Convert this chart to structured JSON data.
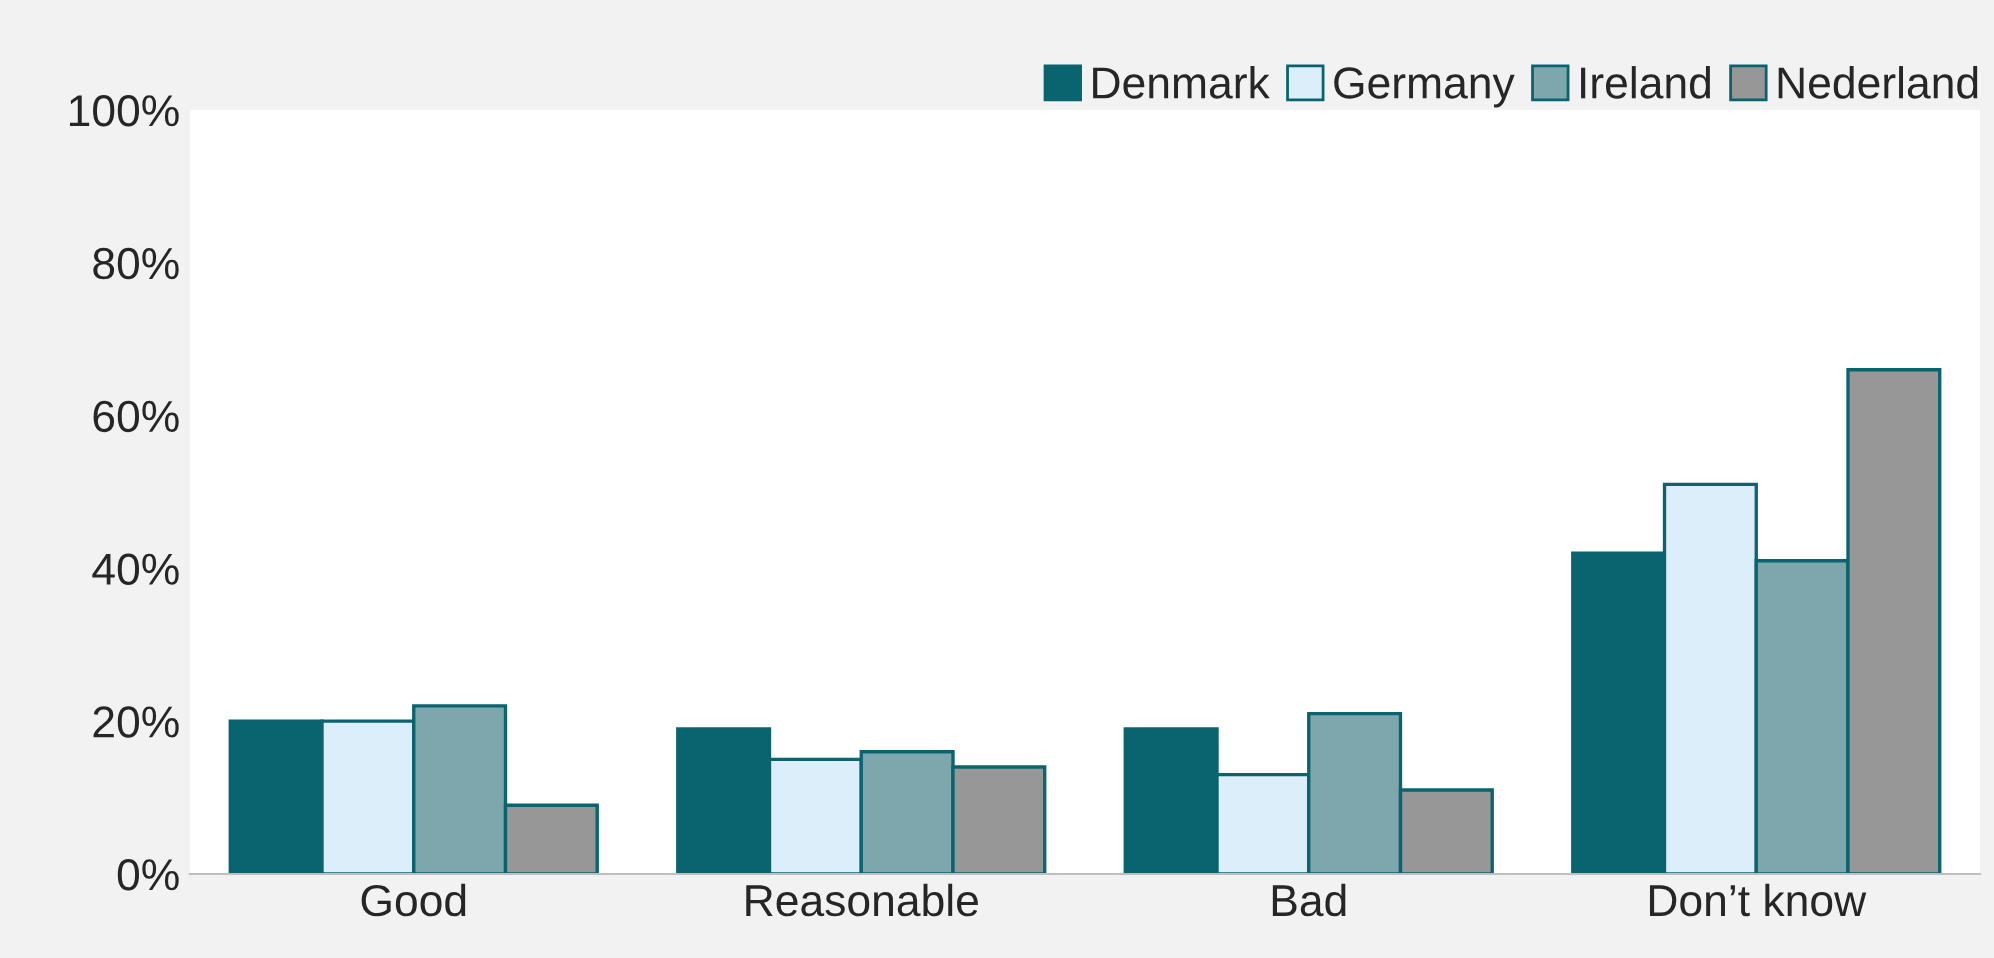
{
  "chart_data": {
    "type": "bar",
    "categories": [
      "Good",
      "Reasonable",
      "Bad",
      "Don’t know"
    ],
    "series": [
      {
        "name": "Denmark",
        "color": "#0a6470",
        "values": [
          20,
          19,
          19,
          42
        ]
      },
      {
        "name": "Germany",
        "color": "#dbeef9",
        "values": [
          20,
          15,
          13,
          51
        ]
      },
      {
        "name": "Ireland",
        "color": "#7ea6ad",
        "values": [
          22,
          16,
          21,
          41
        ]
      },
      {
        "name": "Nederland",
        "color": "#979797",
        "values": [
          9,
          14,
          11,
          66
        ]
      }
    ],
    "ylim": [
      0,
      100
    ],
    "yticks": [
      {
        "value": 0,
        "label": "0%"
      },
      {
        "value": 20,
        "label": "20%"
      },
      {
        "value": 40,
        "label": "40%"
      },
      {
        "value": 60,
        "label": "60%"
      },
      {
        "value": 80,
        "label": "80%"
      },
      {
        "value": 100,
        "label": "100%"
      }
    ],
    "grid": false,
    "legend": "top right"
  }
}
